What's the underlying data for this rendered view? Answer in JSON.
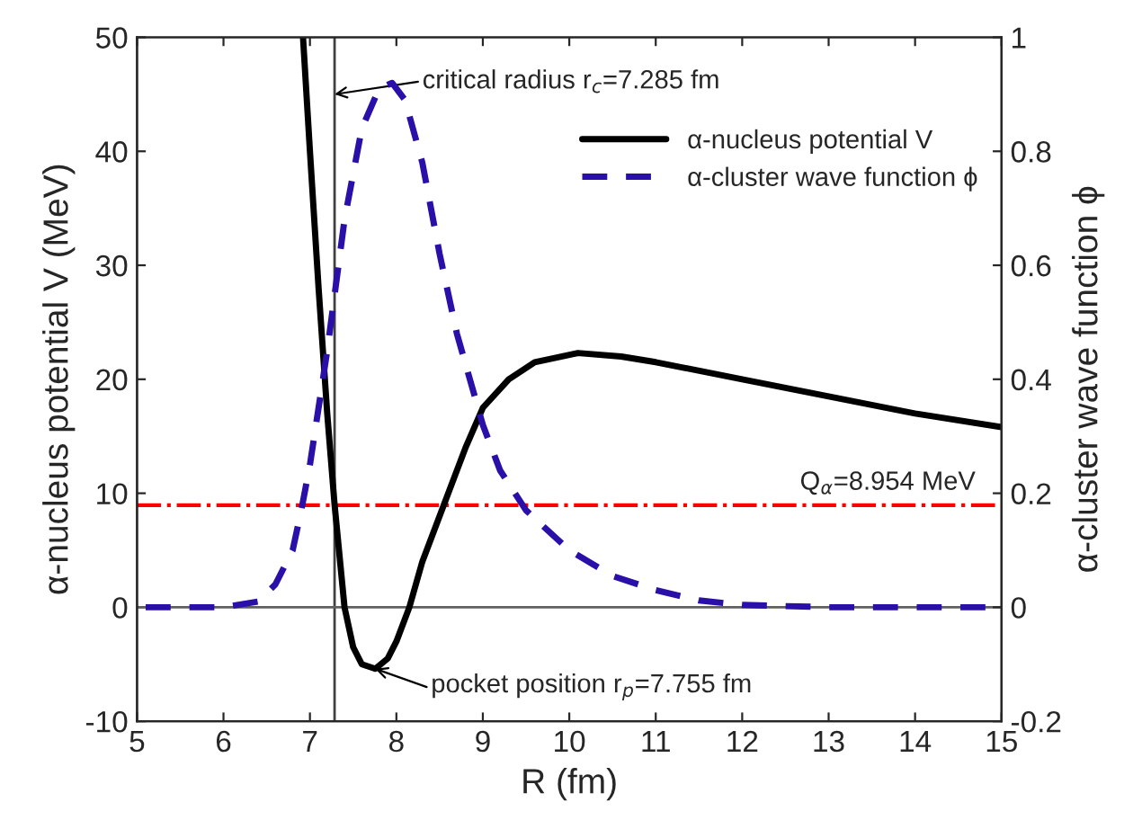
{
  "chart_data": {
    "type": "line",
    "xlabel": "R (fm)",
    "ylabel": "α-nucleus potential V (MeV)",
    "y2label": "α-cluster wave function ϕ",
    "xlim": [
      5,
      15
    ],
    "xticks": [
      5,
      6,
      7,
      8,
      9,
      10,
      11,
      12,
      13,
      14,
      15
    ],
    "ylim": [
      -10,
      50
    ],
    "yticks": [
      -10,
      0,
      10,
      20,
      30,
      40,
      50
    ],
    "y2lim": [
      -0.2,
      1
    ],
    "y2ticks": [
      -0.2,
      0,
      0.2,
      0.4,
      0.6,
      0.8,
      1
    ],
    "legend": "top right",
    "grid": false,
    "series": [
      {
        "name": "α-nucleus potential V",
        "color": "#000000",
        "line_style": "solid",
        "x": [
          6.92,
          7.0,
          7.1,
          7.2,
          7.285,
          7.4,
          7.5,
          7.6,
          7.755,
          7.9,
          8.0,
          8.15,
          8.3,
          8.55,
          8.8,
          9.0,
          9.3,
          9.6,
          10.1,
          10.6,
          11,
          12,
          13,
          14,
          15
        ],
        "values": [
          50,
          40,
          28,
          17,
          9,
          0,
          -3.5,
          -5,
          -5.4,
          -4.5,
          -3,
          0,
          4,
          9,
          14,
          17.5,
          20,
          21.5,
          22.3,
          22,
          21.5,
          20,
          18.5,
          17,
          15.8
        ]
      },
      {
        "name": "α-cluster wave function ϕ",
        "color": "#2a0fa8",
        "line_style": "dashed",
        "axis": "y2",
        "x": [
          5.1,
          6.0,
          6.4,
          6.6,
          6.8,
          6.9,
          7.0,
          7.2,
          7.4,
          7.6,
          7.8,
          7.95,
          8.1,
          8.3,
          8.5,
          8.7,
          9.0,
          9.2,
          9.5,
          10,
          10.5,
          11,
          11.5,
          12,
          13,
          15
        ],
        "values": [
          0,
          0,
          0.01,
          0.04,
          0.1,
          0.17,
          0.25,
          0.45,
          0.68,
          0.84,
          0.91,
          0.92,
          0.89,
          0.78,
          0.62,
          0.48,
          0.32,
          0.24,
          0.17,
          0.1,
          0.055,
          0.03,
          0.012,
          0.004,
          0,
          0
        ]
      }
    ],
    "ref_lines": [
      {
        "axis": "x",
        "value": 7.285,
        "color": "#404040",
        "line_style": "solid"
      },
      {
        "axis": "y",
        "value": 0,
        "color": "#606060",
        "line_style": "solid"
      },
      {
        "axis": "y",
        "value": 8.954,
        "color": "#ff0000",
        "line_style": "dashdot",
        "label": "Q$_{α}$=8.954 MeV"
      }
    ],
    "annotations": [
      {
        "text": "critical radius r$_{c}$=7.285 fm",
        "x": 7.285,
        "y": 45
      },
      {
        "text": "pocket position r$_{p}$=7.755 fm",
        "x": 7.755,
        "y": -5.4
      }
    ]
  }
}
